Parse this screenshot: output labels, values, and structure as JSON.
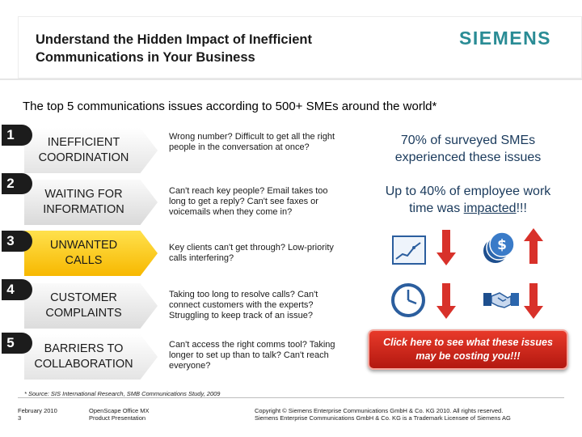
{
  "header": {
    "title_line1": "Understand the Hidden Impact of Inefficient",
    "title_line2": "Communications in Your Business",
    "logo_text": "SIEMENS"
  },
  "subtitle": "The top 5 communications issues according to 500+ SMEs around the world*",
  "issues": [
    {
      "number": "1",
      "label": "INEFFICIENT\nCOORDINATION",
      "color": "#f2f2f2",
      "description": "Wrong number? Difficult to get all the right people in the conversation at once?"
    },
    {
      "number": "2",
      "label": "WAITING FOR\nINFORMATION",
      "color": "#e5e5e5",
      "description": "Can't reach key people? Email takes too long to get a reply? Can't see faxes or voicemails when they come in?"
    },
    {
      "number": "3",
      "label": "UNWANTED\nCALLS",
      "color": "#ffd21f",
      "description": "Key clients can't get through? Low-priority calls interfering?"
    },
    {
      "number": "4",
      "label": "CUSTOMER\nCOMPLAINTS",
      "color": "#e6e6e6",
      "description": "Taking too long to resolve calls? Can't connect customers with the experts? Struggling to keep track of an issue?"
    },
    {
      "number": "5",
      "label": "BARRIERS TO\nCOLLABORATION",
      "color": "#f0f0f0",
      "description": "Can't access the right comms tool? Taking longer to set up than to talk? Can't reach everyone?"
    }
  ],
  "stats": {
    "stat1_line1": "70% of surveyed SMEs",
    "stat1_line2": "experienced these issues",
    "stat2_line1": "Up to 40% of employee work",
    "stat2_line2_pre": "time was ",
    "stat2_line2_underlined": "impacted",
    "stat2_line2_post": "!!!"
  },
  "icons": {
    "productivity": "line-chart-icon",
    "revenue": "dollar-coins-icon",
    "time": "clock-icon",
    "customers": "handshake-icon",
    "decrease": "red-down-arrow-icon",
    "increase": "red-up-arrow-icon"
  },
  "cta_text": "Click here to see what these issues\nmay be costing you!!!",
  "footnote": "* Source: SIS International Research, SMB Communications Study, 2009",
  "footer": {
    "date_page": "February 2010\n3",
    "product": "OpenScape Office MX\nProduct Presentation",
    "copyright": "Copyright © Siemens Enterprise Communications GmbH & Co. KG 2010. All rights reserved.\nSiemens Enterprise Communications GmbH & Co. KG is a Trademark Licensee of Siemens AG"
  },
  "colors": {
    "brand": "#2a8c95",
    "stat_text": "#1a3a5c",
    "cta_red": "#c62316",
    "arrow_red": "#d8312a"
  }
}
